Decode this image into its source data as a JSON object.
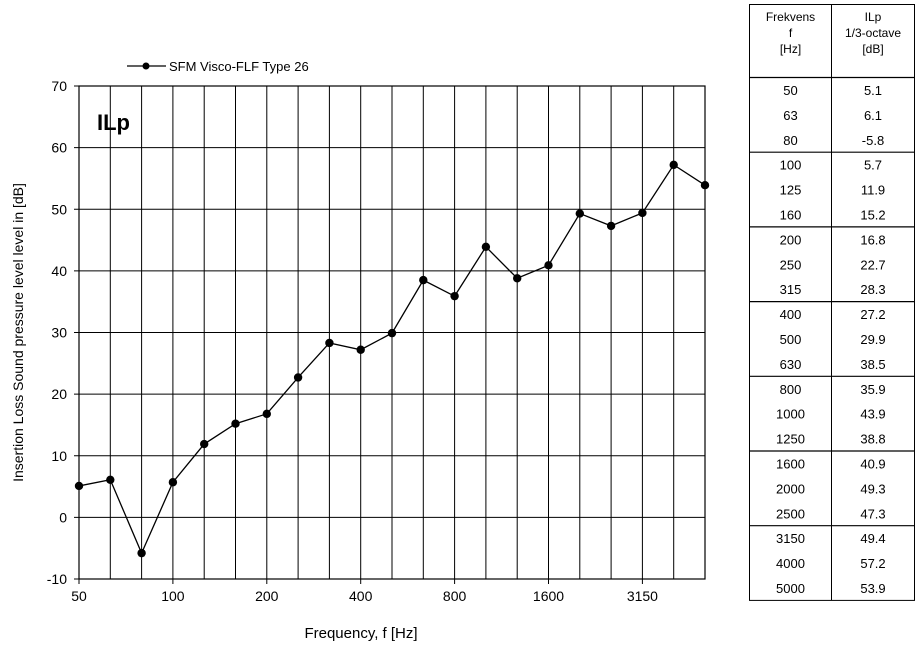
{
  "chart_data": {
    "type": "line",
    "legend": {
      "label": "SFM Visco-FLF Type 26",
      "position": "top-left"
    },
    "annotation": "ILp",
    "ylabel": "Insertion Loss  Sound pressure level level  in   [dB]",
    "xlabel": "Frequency, f [Hz]",
    "ylim": [
      -10,
      70
    ],
    "yticks": [
      -10,
      0,
      10,
      20,
      30,
      40,
      50,
      60,
      70
    ],
    "x_tick_labels": [
      "50",
      "100",
      "200",
      "400",
      "800",
      "1600",
      "3150"
    ],
    "grid": true,
    "series": [
      {
        "name": "SFM Visco-FLF Type 26",
        "color": "#000000",
        "marker": "circle",
        "x": [
          50,
          63,
          80,
          100,
          125,
          160,
          200,
          250,
          315,
          400,
          500,
          630,
          800,
          1000,
          1250,
          1600,
          2000,
          2500,
          3150,
          4000,
          5000
        ],
        "values": [
          5.1,
          6.1,
          -5.8,
          5.7,
          11.9,
          15.2,
          16.8,
          22.7,
          28.3,
          27.2,
          29.9,
          38.5,
          35.9,
          43.9,
          38.8,
          40.9,
          49.3,
          47.3,
          49.4,
          57.2,
          53.9
        ]
      }
    ]
  },
  "table": {
    "headers": [
      [
        "Frekvens",
        "f",
        "[Hz]"
      ],
      [
        "ILp",
        "1/3-octave",
        "[dB]"
      ]
    ],
    "rows": [
      [
        "50",
        "5.1"
      ],
      [
        "63",
        "6.1"
      ],
      [
        "80",
        "-5.8"
      ],
      [
        "100",
        "5.7"
      ],
      [
        "125",
        "11.9"
      ],
      [
        "160",
        "15.2"
      ],
      [
        "200",
        "16.8"
      ],
      [
        "250",
        "22.7"
      ],
      [
        "315",
        "28.3"
      ],
      [
        "400",
        "27.2"
      ],
      [
        "500",
        "29.9"
      ],
      [
        "630",
        "38.5"
      ],
      [
        "800",
        "35.9"
      ],
      [
        "1000",
        "43.9"
      ],
      [
        "1250",
        "38.8"
      ],
      [
        "1600",
        "40.9"
      ],
      [
        "2000",
        "49.3"
      ],
      [
        "2500",
        "47.3"
      ],
      [
        "3150",
        "49.4"
      ],
      [
        "4000",
        "57.2"
      ],
      [
        "5000",
        "53.9"
      ]
    ]
  }
}
